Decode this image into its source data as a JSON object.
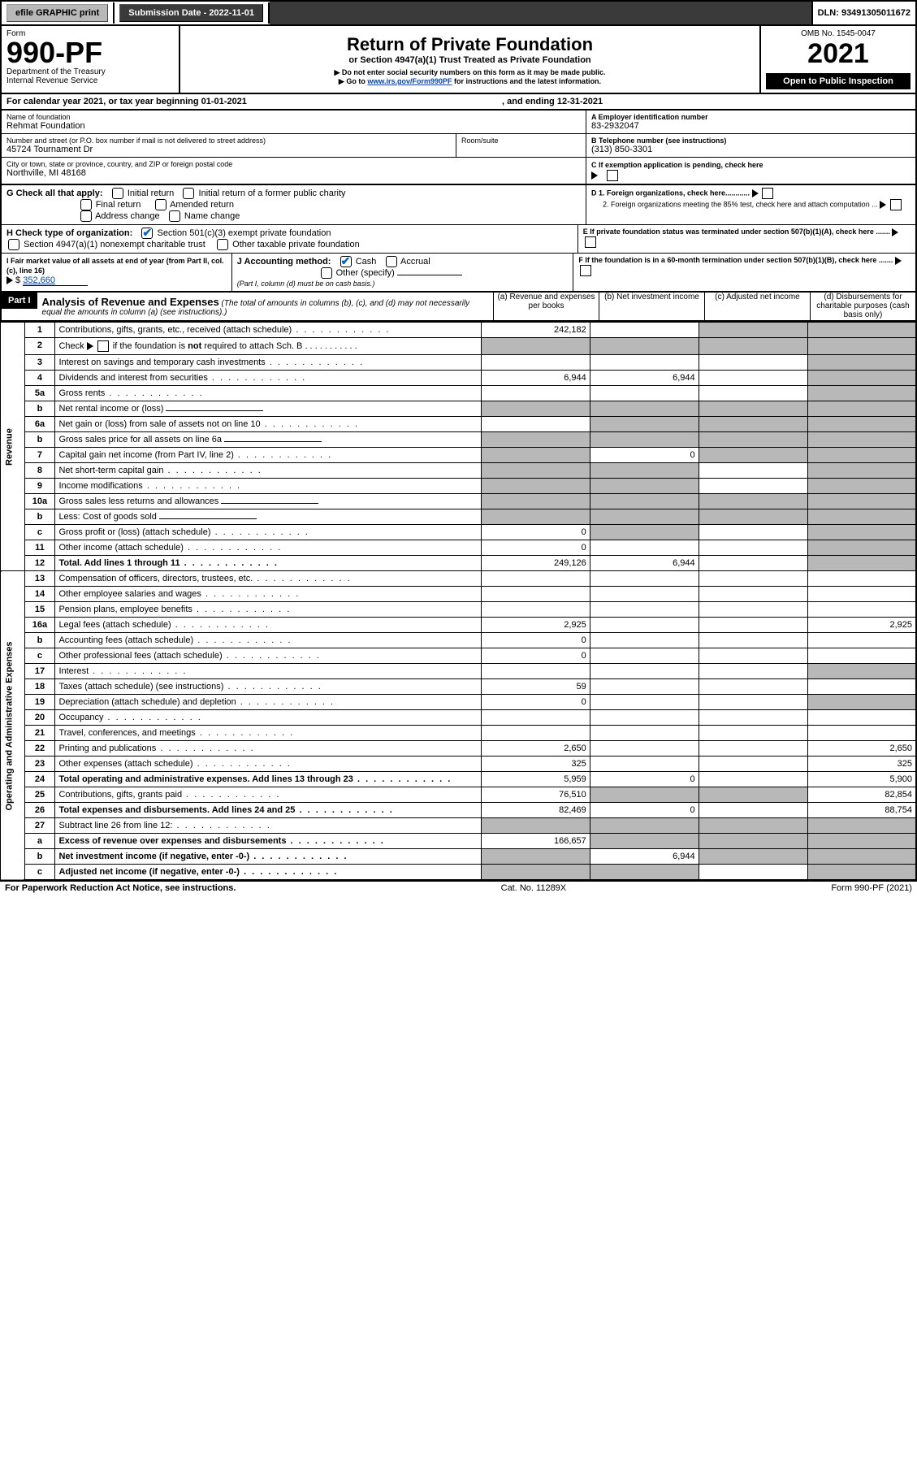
{
  "topbar": {
    "efile": "efile GRAPHIC print",
    "submission_label": "Submission Date - 2022-11-01",
    "dln": "DLN: 93491305011672"
  },
  "header": {
    "form_label": "Form",
    "form_no": "990-PF",
    "dept": "Department of the Treasury",
    "irs": "Internal Revenue Service",
    "title": "Return of Private Foundation",
    "subtitle": "or Section 4947(a)(1) Trust Treated as Private Foundation",
    "note1": "▶ Do not enter social security numbers on this form as it may be made public.",
    "note2_prefix": "▶ Go to ",
    "note2_link": "www.irs.gov/Form990PF",
    "note2_suffix": " for instructions and the latest information.",
    "omb": "OMB No. 1545-0047",
    "year": "2021",
    "open": "Open to Public Inspection"
  },
  "calendar": {
    "text": "For calendar year 2021, or tax year beginning 01-01-2021",
    "ending": ", and ending 12-31-2021"
  },
  "entity": {
    "name_lbl": "Name of foundation",
    "name": "Rehmat Foundation",
    "addr_lbl": "Number and street (or P.O. box number if mail is not delivered to street address)",
    "addr": "45724 Tournament Dr",
    "room_lbl": "Room/suite",
    "city_lbl": "City or town, state or province, country, and ZIP or foreign postal code",
    "city": "Northville, MI  48168",
    "A_lbl": "A Employer identification number",
    "A_val": "83-2932047",
    "B_lbl": "B Telephone number (see instructions)",
    "B_val": "(313) 850-3301",
    "C_lbl": "C If exemption application is pending, check here",
    "D1_lbl": "D 1. Foreign organizations, check here............",
    "D2_lbl": "2. Foreign organizations meeting the 85% test, check here and attach computation ...",
    "E_lbl": "E  If private foundation status was terminated under section 507(b)(1)(A), check here .......",
    "F_lbl": "F  If the foundation is in a 60-month termination under section 507(b)(1)(B), check here .......",
    "G_lbl": "G Check all that apply:",
    "G_opts": [
      "Initial return",
      "Initial return of a former public charity",
      "Final return",
      "Amended return",
      "Address change",
      "Name change"
    ],
    "H_lbl": "H Check type of organization:",
    "H_opt1": "Section 501(c)(3) exempt private foundation",
    "H_opt2": "Section 4947(a)(1) nonexempt charitable trust",
    "H_opt3": "Other taxable private foundation",
    "I_lbl": "I Fair market value of all assets at end of year (from Part II, col. (c), line 16)",
    "I_val": "352,660",
    "J_lbl": "J Accounting method:",
    "J_opts": [
      "Cash",
      "Accrual",
      "Other (specify)"
    ],
    "J_note": "(Part I, column (d) must be on cash basis.)"
  },
  "part1": {
    "tag": "Part I",
    "title": "Analysis of Revenue and Expenses",
    "note": "(The total of amounts in columns (b), (c), and (d) may not necessarily equal the amounts in column (a) (see instructions).)",
    "cols": {
      "a": "(a)   Revenue and expenses per books",
      "b": "(b)   Net investment income",
      "c": "(c)   Adjusted net income",
      "d": "(d)   Disbursements for charitable purposes (cash basis only)"
    }
  },
  "side": {
    "rev": "Revenue",
    "exp": "Operating and Administrative Expenses"
  },
  "lines": [
    {
      "n": "1",
      "d": "Contributions, gifts, grants, etc., received (attach schedule)",
      "a": "242,182",
      "b": "",
      "c": "",
      "dcol": "",
      "shade_c": true,
      "shade_d": true
    },
    {
      "n": "2",
      "d": "Check ▶ ☐ if the foundation is not required to attach Sch. B",
      "a": "",
      "b": "",
      "c": "",
      "dcol": "",
      "shade_a": true,
      "shade_b": true,
      "shade_c": true,
      "shade_d": true,
      "html_desc": true
    },
    {
      "n": "3",
      "d": "Interest on savings and temporary cash investments",
      "a": "",
      "b": "",
      "c": "",
      "dcol": "",
      "shade_d": true
    },
    {
      "n": "4",
      "d": "Dividends and interest from securities",
      "a": "6,944",
      "b": "6,944",
      "c": "",
      "dcol": "",
      "shade_d": true
    },
    {
      "n": "5a",
      "d": "Gross rents",
      "a": "",
      "b": "",
      "c": "",
      "dcol": "",
      "shade_d": true
    },
    {
      "n": "b",
      "d": "Net rental income or (loss)",
      "a": "",
      "b": "",
      "c": "",
      "dcol": "",
      "shade_a": true,
      "shade_b": true,
      "shade_c": true,
      "shade_d": true,
      "underline": true
    },
    {
      "n": "6a",
      "d": "Net gain or (loss) from sale of assets not on line 10",
      "a": "",
      "b": "",
      "c": "",
      "dcol": "",
      "shade_b": true,
      "shade_c": true,
      "shade_d": true
    },
    {
      "n": "b",
      "d": "Gross sales price for all assets on line 6a",
      "a": "",
      "b": "",
      "c": "",
      "dcol": "",
      "shade_a": true,
      "shade_b": true,
      "shade_c": true,
      "shade_d": true,
      "underline": true
    },
    {
      "n": "7",
      "d": "Capital gain net income (from Part IV, line 2)",
      "a": "",
      "b": "0",
      "c": "",
      "dcol": "",
      "shade_a": true,
      "shade_c": true,
      "shade_d": true
    },
    {
      "n": "8",
      "d": "Net short-term capital gain",
      "a": "",
      "b": "",
      "c": "",
      "dcol": "",
      "shade_a": true,
      "shade_b": true,
      "shade_d": true
    },
    {
      "n": "9",
      "d": "Income modifications",
      "a": "",
      "b": "",
      "c": "",
      "dcol": "",
      "shade_a": true,
      "shade_b": true,
      "shade_d": true
    },
    {
      "n": "10a",
      "d": "Gross sales less returns and allowances",
      "a": "",
      "b": "",
      "c": "",
      "dcol": "",
      "shade_a": true,
      "shade_b": true,
      "shade_c": true,
      "shade_d": true,
      "underline": true
    },
    {
      "n": "b",
      "d": "Less: Cost of goods sold",
      "a": "",
      "b": "",
      "c": "",
      "dcol": "",
      "shade_a": true,
      "shade_b": true,
      "shade_c": true,
      "shade_d": true,
      "underline": true
    },
    {
      "n": "c",
      "d": "Gross profit or (loss) (attach schedule)",
      "a": "0",
      "b": "",
      "c": "",
      "dcol": "",
      "shade_b": true,
      "shade_d": true
    },
    {
      "n": "11",
      "d": "Other income (attach schedule)",
      "a": "0",
      "b": "",
      "c": "",
      "dcol": "",
      "shade_d": true
    },
    {
      "n": "12",
      "d": "Total. Add lines 1 through 11",
      "a": "249,126",
      "b": "6,944",
      "c": "",
      "dcol": "",
      "bold": true,
      "shade_d": true
    },
    {
      "n": "13",
      "d": "Compensation of officers, directors, trustees, etc.",
      "a": "",
      "b": "",
      "c": "",
      "dcol": ""
    },
    {
      "n": "14",
      "d": "Other employee salaries and wages",
      "a": "",
      "b": "",
      "c": "",
      "dcol": ""
    },
    {
      "n": "15",
      "d": "Pension plans, employee benefits",
      "a": "",
      "b": "",
      "c": "",
      "dcol": ""
    },
    {
      "n": "16a",
      "d": "Legal fees (attach schedule)",
      "a": "2,925",
      "b": "",
      "c": "",
      "dcol": "2,925"
    },
    {
      "n": "b",
      "d": "Accounting fees (attach schedule)",
      "a": "0",
      "b": "",
      "c": "",
      "dcol": ""
    },
    {
      "n": "c",
      "d": "Other professional fees (attach schedule)",
      "a": "0",
      "b": "",
      "c": "",
      "dcol": ""
    },
    {
      "n": "17",
      "d": "Interest",
      "a": "",
      "b": "",
      "c": "",
      "dcol": "",
      "shade_d": true
    },
    {
      "n": "18",
      "d": "Taxes (attach schedule) (see instructions)",
      "a": "59",
      "b": "",
      "c": "",
      "dcol": ""
    },
    {
      "n": "19",
      "d": "Depreciation (attach schedule) and depletion",
      "a": "0",
      "b": "",
      "c": "",
      "dcol": "",
      "shade_d": true
    },
    {
      "n": "20",
      "d": "Occupancy",
      "a": "",
      "b": "",
      "c": "",
      "dcol": ""
    },
    {
      "n": "21",
      "d": "Travel, conferences, and meetings",
      "a": "",
      "b": "",
      "c": "",
      "dcol": ""
    },
    {
      "n": "22",
      "d": "Printing and publications",
      "a": "2,650",
      "b": "",
      "c": "",
      "dcol": "2,650"
    },
    {
      "n": "23",
      "d": "Other expenses (attach schedule)",
      "a": "325",
      "b": "",
      "c": "",
      "dcol": "325"
    },
    {
      "n": "24",
      "d": "Total operating and administrative expenses. Add lines 13 through 23",
      "a": "5,959",
      "b": "0",
      "c": "",
      "dcol": "5,900",
      "bold": true
    },
    {
      "n": "25",
      "d": "Contributions, gifts, grants paid",
      "a": "76,510",
      "b": "",
      "c": "",
      "dcol": "82,854",
      "shade_b": true,
      "shade_c": true
    },
    {
      "n": "26",
      "d": "Total expenses and disbursements. Add lines 24 and 25",
      "a": "82,469",
      "b": "0",
      "c": "",
      "dcol": "88,754",
      "bold": true
    },
    {
      "n": "27",
      "d": "Subtract line 26 from line 12:",
      "a": "",
      "b": "",
      "c": "",
      "dcol": "",
      "shade_a": true,
      "shade_b": true,
      "shade_c": true,
      "shade_d": true
    },
    {
      "n": "a",
      "d": "Excess of revenue over expenses and disbursements",
      "a": "166,657",
      "b": "",
      "c": "",
      "dcol": "",
      "bold": true,
      "shade_b": true,
      "shade_c": true,
      "shade_d": true
    },
    {
      "n": "b",
      "d": "Net investment income (if negative, enter -0-)",
      "a": "",
      "b": "6,944",
      "c": "",
      "dcol": "",
      "bold": true,
      "shade_a": true,
      "shade_c": true,
      "shade_d": true
    },
    {
      "n": "c",
      "d": "Adjusted net income (if negative, enter -0-)",
      "a": "",
      "b": "",
      "c": "",
      "dcol": "",
      "bold": true,
      "shade_a": true,
      "shade_b": true,
      "shade_d": true
    }
  ],
  "footer": {
    "left": "For Paperwork Reduction Act Notice, see instructions.",
    "mid": "Cat. No. 11289X",
    "right": "Form 990-PF (2021)"
  }
}
